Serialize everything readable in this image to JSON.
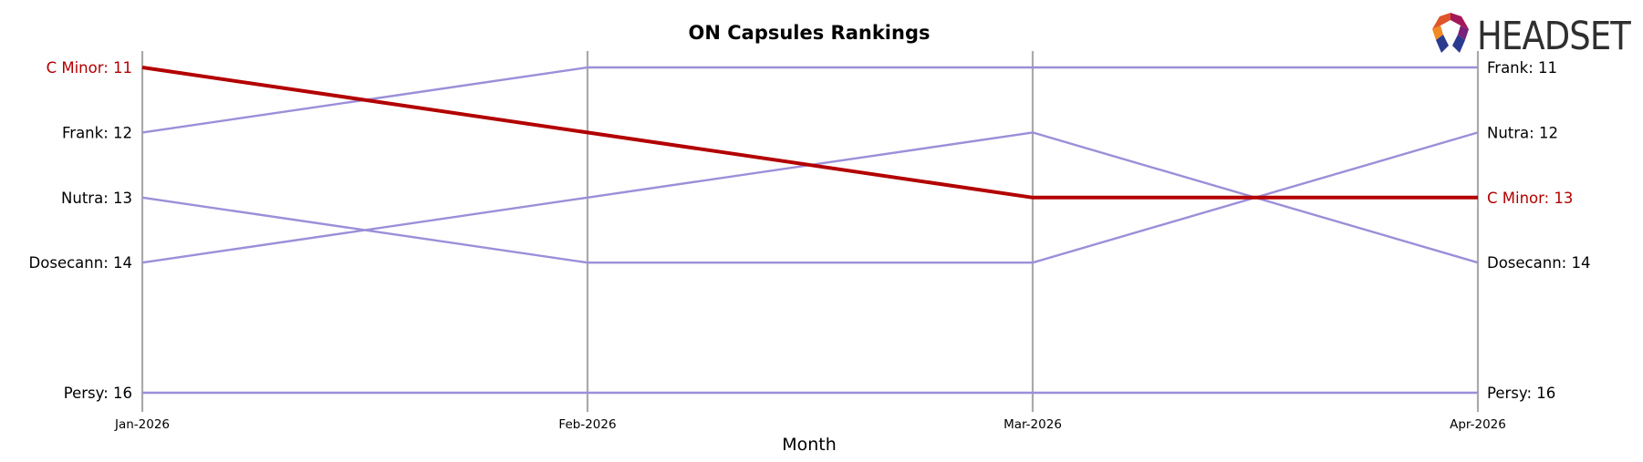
{
  "chart_data": {
    "type": "line",
    "title": "ON Capsules Rankings",
    "xlabel": "Month",
    "ylabel": "",
    "categories": [
      "Jan-2026",
      "Feb-2026",
      "Mar-2026",
      "Apr-2026"
    ],
    "ylim": [
      16,
      11
    ],
    "y_inverted": true,
    "grid": "vertical lines at each month",
    "highlight_color": "#b30000",
    "base_color": "#9b8fd9",
    "series": [
      {
        "name": "C Minor",
        "values": [
          11,
          12,
          13,
          13
        ],
        "highlight": true
      },
      {
        "name": "Frank",
        "values": [
          12,
          11,
          11,
          11
        ],
        "highlight": false
      },
      {
        "name": "Nutra",
        "values": [
          13,
          14,
          14,
          12
        ],
        "highlight": false
      },
      {
        "name": "Dosecann",
        "values": [
          14,
          13,
          12,
          14
        ],
        "highlight": false
      },
      {
        "name": "Persy",
        "values": [
          16,
          16,
          16,
          16
        ],
        "highlight": false
      }
    ],
    "left_labels": [
      {
        "text": "C Minor: 11",
        "value": 11,
        "highlight": true
      },
      {
        "text": "Frank: 12",
        "value": 12,
        "highlight": false
      },
      {
        "text": "Nutra: 13",
        "value": 13,
        "highlight": false
      },
      {
        "text": "Dosecann: 14",
        "value": 14,
        "highlight": false
      },
      {
        "text": "Persy: 16",
        "value": 16,
        "highlight": false
      }
    ],
    "right_labels": [
      {
        "text": "Frank: 11",
        "value": 11,
        "highlight": false
      },
      {
        "text": "Nutra: 12",
        "value": 12,
        "highlight": false
      },
      {
        "text": "C Minor: 13",
        "value": 13,
        "highlight": true
      },
      {
        "text": "Dosecann: 14",
        "value": 14,
        "highlight": false
      },
      {
        "text": "Persy: 16",
        "value": 16,
        "highlight": false
      }
    ]
  },
  "logo": {
    "text": "HEADSET",
    "icon": "headset-logo-icon"
  }
}
